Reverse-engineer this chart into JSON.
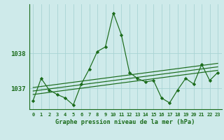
{
  "title": "Graphe pression niveau de la mer (hPa)",
  "background_color": "#ceeaea",
  "grid_color": "#a8d4d4",
  "line_color": "#1a6b1a",
  "x_labels": [
    "0",
    "1",
    "2",
    "3",
    "4",
    "5",
    "6",
    "7",
    "8",
    "9",
    "10",
    "11",
    "12",
    "13",
    "14",
    "15",
    "16",
    "17",
    "18",
    "19",
    "20",
    "21",
    "22",
    "23"
  ],
  "yticks": [
    1037,
    1038
  ],
  "ylim": [
    1036.4,
    1039.4
  ],
  "xlim": [
    -0.5,
    23.5
  ],
  "main_series": [
    1036.65,
    1037.28,
    1036.95,
    1036.82,
    1036.72,
    1036.52,
    1037.12,
    1037.55,
    1038.05,
    1038.18,
    1039.15,
    1038.52,
    1037.45,
    1037.28,
    1037.18,
    1037.22,
    1036.72,
    1036.58,
    1036.95,
    1037.28,
    1037.12,
    1037.68,
    1037.22,
    1037.45
  ],
  "trend_series1": [
    1036.82,
    1036.85,
    1036.88,
    1036.91,
    1036.94,
    1036.97,
    1037.0,
    1037.03,
    1037.06,
    1037.09,
    1037.12,
    1037.15,
    1037.18,
    1037.21,
    1037.24,
    1037.27,
    1037.3,
    1037.33,
    1037.36,
    1037.39,
    1037.42,
    1037.45,
    1037.48,
    1037.51
  ],
  "trend_series2": [
    1036.92,
    1036.95,
    1036.98,
    1037.01,
    1037.04,
    1037.07,
    1037.1,
    1037.13,
    1037.16,
    1037.19,
    1037.22,
    1037.25,
    1037.28,
    1037.31,
    1037.34,
    1037.37,
    1037.4,
    1037.43,
    1037.46,
    1037.49,
    1037.52,
    1037.55,
    1037.58,
    1037.61
  ],
  "trend_series3": [
    1037.02,
    1037.05,
    1037.08,
    1037.11,
    1037.14,
    1037.17,
    1037.2,
    1037.23,
    1037.26,
    1037.29,
    1037.32,
    1037.35,
    1037.38,
    1037.41,
    1037.44,
    1037.47,
    1037.5,
    1037.53,
    1037.56,
    1037.59,
    1037.62,
    1037.65,
    1037.68,
    1037.71
  ]
}
